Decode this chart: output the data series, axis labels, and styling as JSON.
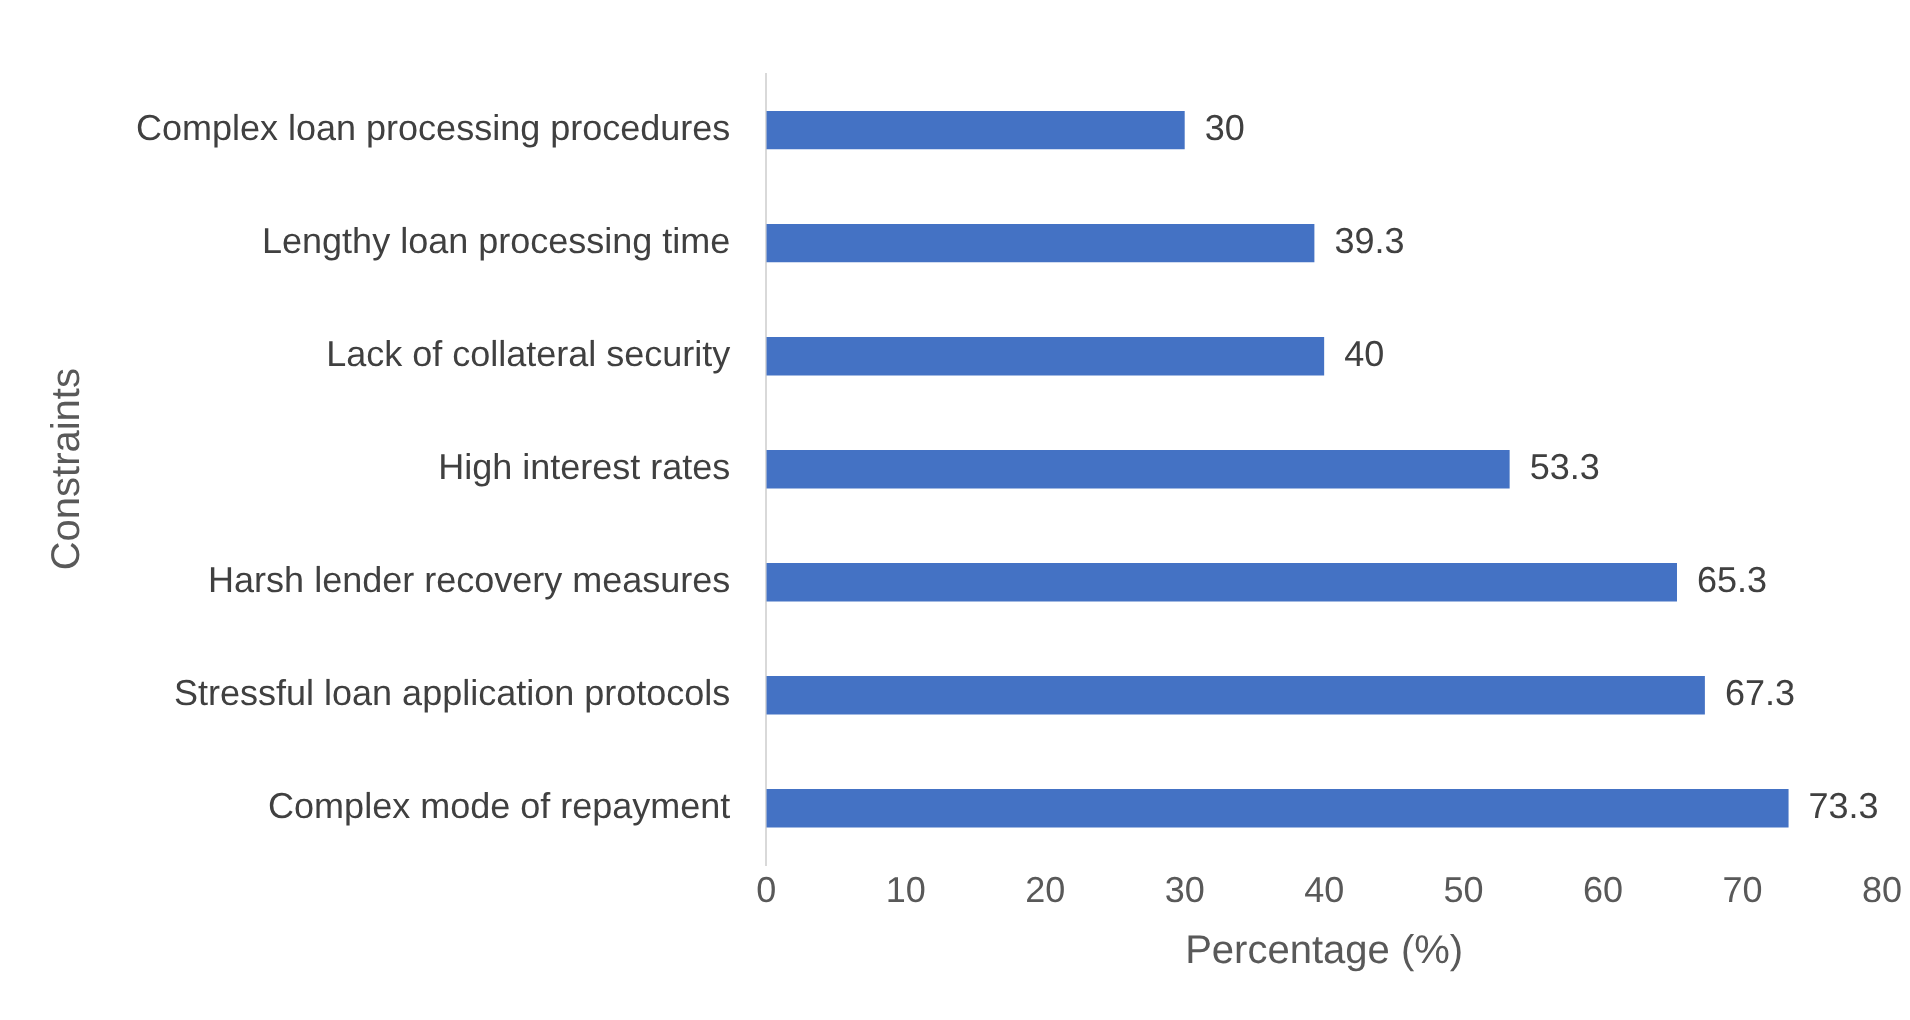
{
  "chart_data": {
    "type": "bar",
    "orientation": "horizontal",
    "xlabel": "Percentage (%)",
    "ylabel": "Constraints",
    "categories": [
      "Complex loan processing procedures",
      "Lengthy loan processing time",
      "Lack of collateral security",
      "High interest rates",
      "Harsh lender recovery measures",
      "Stressful loan application protocols",
      "Complex mode of repayment"
    ],
    "values": [
      30,
      39.3,
      40,
      53.3,
      65.3,
      67.3,
      73.3
    ],
    "color": "#4472c4",
    "xlim": [
      0,
      80
    ],
    "xticks": [
      0,
      10,
      20,
      30,
      40,
      50,
      60,
      70,
      80
    ],
    "grid": false,
    "legend": false,
    "data_labels": true
  }
}
